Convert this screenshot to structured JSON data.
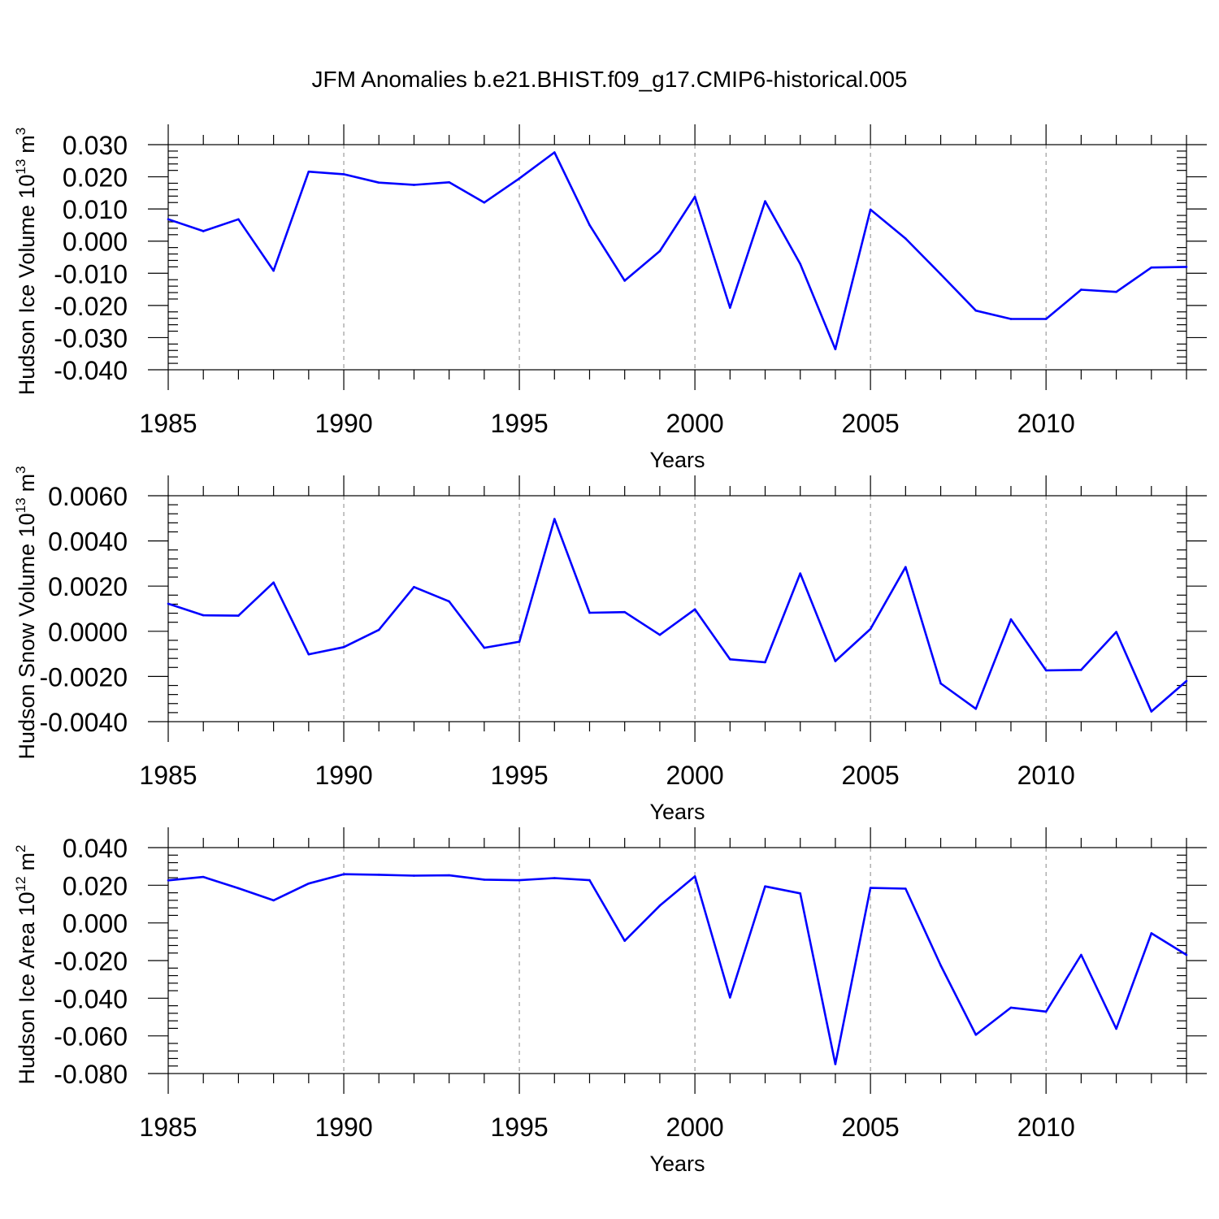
{
  "title": "JFM Anomalies b.e21.BHIST.f09_g17.CMIP6-historical.005",
  "colors": {
    "series": "#0000ff",
    "frame": "#000000",
    "grid": "#888888"
  },
  "chart_data": [
    {
      "type": "line",
      "title": "JFM Anomalies b.e21.BHIST.f09_g17.CMIP6-historical.005",
      "ylabel": {
        "text": "Hudson Ice Volume 10",
        "exponent": "13",
        "unit": "m",
        "unit_exponent": "3"
      },
      "xlabel": "Years",
      "xlim": [
        1985,
        2014
      ],
      "ylim": [
        -0.04,
        0.03
      ],
      "yticks": [
        0.03,
        0.02,
        0.01,
        0.0,
        -0.01,
        -0.02,
        -0.03,
        -0.04
      ],
      "ytick_labels": [
        "0.030",
        "0.020",
        "0.010",
        "0.000",
        "-0.010",
        "-0.020",
        "-0.030",
        "-0.040"
      ],
      "xticks": [
        1985,
        1990,
        1995,
        2000,
        2005,
        2010
      ],
      "xtick_labels": [
        "1985",
        "1990",
        "1995",
        "2000",
        "2005",
        "2010"
      ],
      "x": [
        1985,
        1986,
        1987,
        1988,
        1989,
        1990,
        1991,
        1992,
        1993,
        1994,
        1995,
        1996,
        1997,
        1998,
        1999,
        2000,
        2001,
        2002,
        2003,
        2004,
        2005,
        2006,
        2007,
        2008,
        2009,
        2010,
        2011,
        2012,
        2013,
        2014
      ],
      "values": [
        0.0068,
        0.0031,
        0.0068,
        -0.0092,
        0.0216,
        0.0208,
        0.0182,
        0.0175,
        0.0183,
        0.012,
        0.0195,
        0.0276,
        0.005,
        -0.0123,
        -0.0031,
        0.0138,
        -0.0207,
        0.0124,
        -0.0071,
        -0.0336,
        0.0098,
        0.0008,
        -0.0103,
        -0.0216,
        -0.0242,
        -0.0242,
        -0.0151,
        -0.0158,
        -0.0082,
        -0.008
      ]
    },
    {
      "type": "line",
      "ylabel": {
        "text": "Hudson Snow Volume 10",
        "exponent": "13",
        "unit": "m",
        "unit_exponent": "3"
      },
      "xlabel": "Years",
      "xlim": [
        1985,
        2014
      ],
      "ylim": [
        -0.004,
        0.006
      ],
      "yticks": [
        0.006,
        0.004,
        0.002,
        0.0,
        -0.002,
        -0.004
      ],
      "ytick_labels": [
        "0.0060",
        "0.0040",
        "0.0020",
        "0.0000",
        "-0.0020",
        "-0.0040"
      ],
      "xticks": [
        1985,
        1990,
        1995,
        2000,
        2005,
        2010
      ],
      "xtick_labels": [
        "1985",
        "1990",
        "1995",
        "2000",
        "2005",
        "2010"
      ],
      "x": [
        1985,
        1986,
        1987,
        1988,
        1989,
        1990,
        1991,
        1992,
        1993,
        1994,
        1995,
        1996,
        1997,
        1998,
        1999,
        2000,
        2001,
        2002,
        2003,
        2004,
        2005,
        2006,
        2007,
        2008,
        2009,
        2010,
        2011,
        2012,
        2013,
        2014
      ],
      "values": [
        0.00122,
        0.00071,
        0.00069,
        0.00216,
        -0.00102,
        -0.0007,
        6e-05,
        0.00196,
        0.00132,
        -0.00073,
        -0.00046,
        0.00497,
        0.00082,
        0.00085,
        -0.00016,
        0.00097,
        -0.00124,
        -0.00137,
        0.00256,
        -0.00132,
        0.0001,
        0.00284,
        -0.00231,
        -0.00343,
        0.00053,
        -0.00173,
        -0.00171,
        -3e-05,
        -0.00355,
        -0.0022
      ]
    },
    {
      "type": "line",
      "ylabel": {
        "text": "Hudson Ice Area 10",
        "exponent": "12",
        "unit": "m",
        "unit_exponent": "2"
      },
      "xlabel": "Years",
      "xlim": [
        1985,
        2014
      ],
      "ylim": [
        -0.08,
        0.04
      ],
      "yticks": [
        0.04,
        0.02,
        0.0,
        -0.02,
        -0.04,
        -0.06,
        -0.08
      ],
      "ytick_labels": [
        "0.040",
        "0.020",
        "0.000",
        "-0.020",
        "-0.040",
        "-0.060",
        "-0.080"
      ],
      "xticks": [
        1985,
        1990,
        1995,
        2000,
        2005,
        2010
      ],
      "xtick_labels": [
        "1985",
        "1990",
        "1995",
        "2000",
        "2005",
        "2010"
      ],
      "x": [
        1985,
        1986,
        1987,
        1988,
        1989,
        1990,
        1991,
        1992,
        1993,
        1994,
        1995,
        1996,
        1997,
        1998,
        1999,
        2000,
        2001,
        2002,
        2003,
        2004,
        2005,
        2006,
        2007,
        2008,
        2009,
        2010,
        2011,
        2012,
        2013,
        2014
      ],
      "values": [
        0.0226,
        0.0244,
        0.0184,
        0.012,
        0.0209,
        0.0259,
        0.0256,
        0.0251,
        0.0253,
        0.023,
        0.0227,
        0.0238,
        0.0227,
        -0.0095,
        0.0092,
        0.0247,
        -0.0396,
        0.0194,
        0.0157,
        -0.075,
        0.0186,
        0.0182,
        -0.0226,
        -0.0594,
        -0.045,
        -0.0471,
        -0.017,
        -0.0562,
        -0.0055,
        -0.017
      ]
    }
  ]
}
